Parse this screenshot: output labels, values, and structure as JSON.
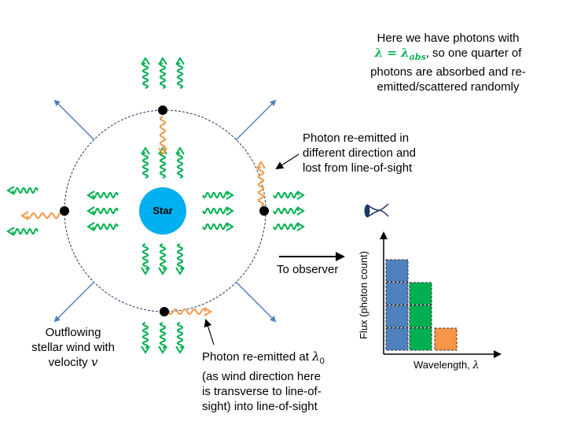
{
  "star_label": "Star",
  "note_top": {
    "line1": "Here we have photons with",
    "lambda_eq": "λ = λ",
    "abs_sub": "abs",
    "line2_rest": ", so one quarter of",
    "line3": "photons are absorbed and re-",
    "line4": "emitted/scattered randomly"
  },
  "note_right": [
    "Photon re-emitted in",
    "different direction and",
    "lost from line-of-sight"
  ],
  "observer_label": "To observer",
  "wind_label": [
    "Outflowing",
    "stellar wind with",
    "velocity "
  ],
  "wind_symbol": "v",
  "bottom_note": {
    "line1_pre": "Photon re-emitted at ",
    "lambda": "λ",
    "sub": "0",
    "line2": "(as wind direction here",
    "line3": "is transverse to line-of-",
    "line4": "sight) into line-of-sight"
  },
  "histogram": {
    "ylabel": "Flux (photon count)",
    "xlabel": "Wavelength, ",
    "xsymbol": "λ",
    "counts": [
      4,
      3,
      1
    ],
    "colors": [
      "#4f81bd",
      "#00b050",
      "#f79646"
    ]
  },
  "colors": {
    "photon": "#00b050",
    "scattered": "#f79646",
    "star": "#00b0f0",
    "wind_arrow": "#4f81bd",
    "shell": "#1f3864"
  }
}
